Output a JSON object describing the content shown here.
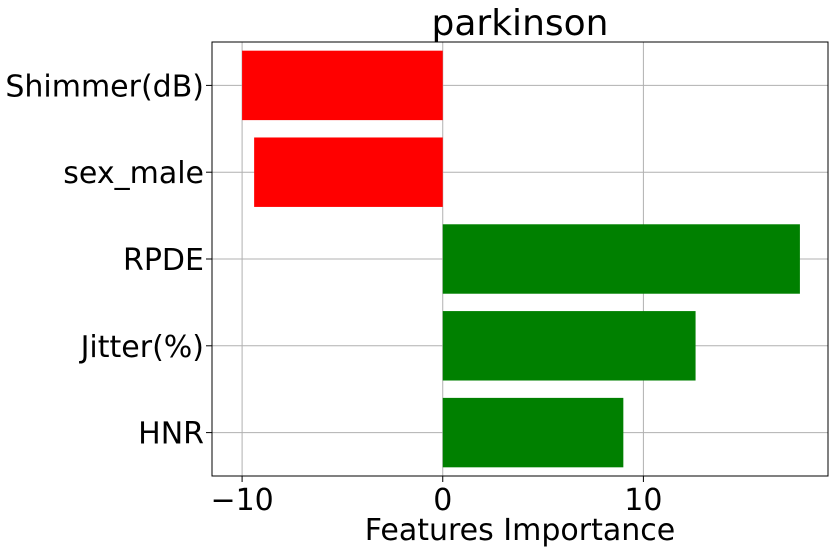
{
  "chart_data": {
    "type": "bar",
    "orientation": "horizontal",
    "title": "parkinson",
    "xlabel": "Features Importance",
    "ylabel": "",
    "categories": [
      "Shimmer(dB)",
      "sex_male",
      "RPDE",
      "Jitter(%)",
      "HNR"
    ],
    "values": [
      -10.0,
      -9.4,
      17.8,
      12.6,
      9.0
    ],
    "xlim": [
      -11.5,
      19.2
    ],
    "xticks": [
      -10,
      0,
      10
    ],
    "xtick_labels": [
      "−10",
      "0",
      "10"
    ],
    "grid": true,
    "colors": {
      "negative": "#ff0000",
      "positive": "#008000"
    }
  }
}
